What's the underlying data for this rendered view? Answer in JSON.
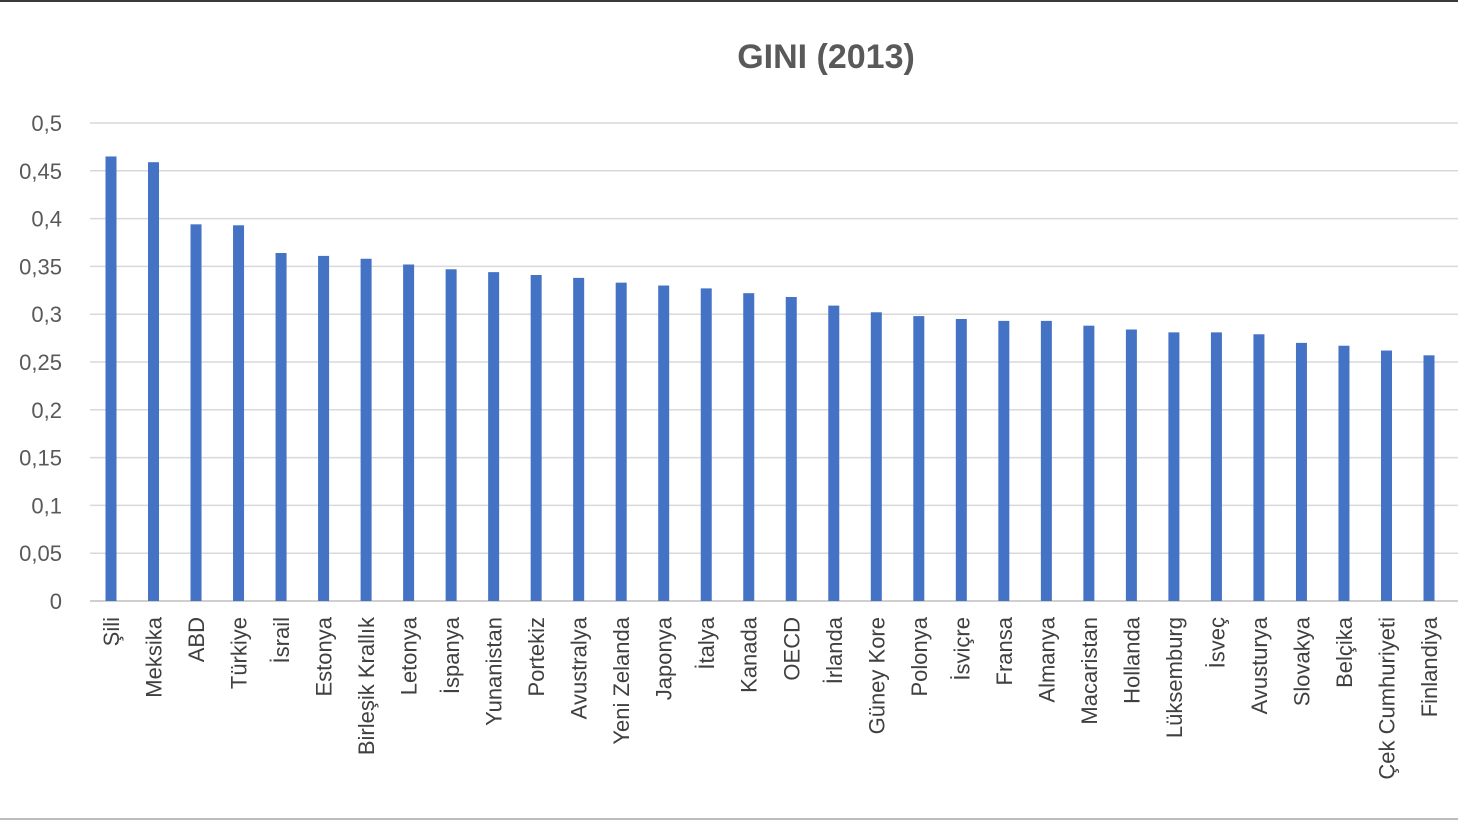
{
  "chart_data": {
    "type": "bar",
    "title": "GINI (2013)",
    "xlabel": "",
    "ylabel": "",
    "ylim": [
      0,
      0.5
    ],
    "yticks": [
      0,
      0.05,
      0.1,
      0.15,
      0.2,
      0.25,
      0.3,
      0.35,
      0.4,
      0.45,
      0.5
    ],
    "ytick_labels": [
      "0",
      "0,05",
      "0,1",
      "0,15",
      "0,2",
      "0,25",
      "0,3",
      "0,35",
      "0,4",
      "0,45",
      "0,5"
    ],
    "grid": true,
    "legend": "none",
    "bar_color": "#4472C4",
    "categories": [
      "Şili",
      "Meksika",
      "ABD",
      "Türkiye",
      "İsrail",
      "Estonya",
      "Birleşik Krallık",
      "Letonya",
      "İspanya",
      "Yunanistan",
      "Portekiz",
      "Avustralya",
      "Yeni Zelanda",
      "Japonya",
      "İtalya",
      "Kanada",
      "OECD",
      "İrlanda",
      "Güney Kore",
      "Polonya",
      "İsviçre",
      "Fransa",
      "Almanya",
      "Macaristan",
      "Hollanda",
      "Lüksemburg",
      "İsveç",
      "Avusturya",
      "Slovakya",
      "Belçika",
      "Çek Cumhuriyeti",
      "Finlandiya"
    ],
    "values": [
      0.465,
      0.459,
      0.394,
      0.393,
      0.364,
      0.361,
      0.358,
      0.352,
      0.347,
      0.344,
      0.341,
      0.338,
      0.333,
      0.33,
      0.327,
      0.322,
      0.318,
      0.309,
      0.302,
      0.298,
      0.295,
      0.293,
      0.293,
      0.288,
      0.284,
      0.281,
      0.281,
      0.279,
      0.27,
      0.267,
      0.262,
      0.257
    ]
  }
}
